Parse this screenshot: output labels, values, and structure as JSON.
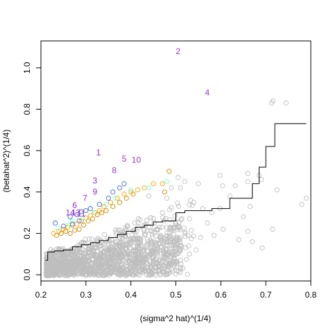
{
  "chart_data": {
    "type": "scatter",
    "xlabel": "(sigma^2 hat)^(1/4)",
    "ylabel": "(betahat^2)^(1/4)",
    "xlim": [
      0.2,
      0.8
    ],
    "ylim": [
      -0.03,
      1.13
    ],
    "x_ticks": [
      "0.2",
      "0.3",
      "0.4",
      "0.5",
      "0.6",
      "0.7",
      "0.8"
    ],
    "y_ticks": [
      "0.0",
      "0.2",
      "0.4",
      "0.6",
      "0.8",
      "1.0"
    ],
    "grid": false,
    "legend": "none",
    "series": [
      {
        "color": "#bebebe",
        "marker": "open-circle",
        "points": [
          [
            0.713,
            0.83
          ],
          [
            0.716,
            0.84
          ],
          [
            0.745,
            0.83
          ],
          [
            0.69,
            0.46
          ],
          [
            0.685,
            0.48
          ],
          [
            0.66,
            0.49
          ],
          [
            0.66,
            0.45
          ],
          [
            0.725,
            0.41
          ],
          [
            0.79,
            0.37
          ],
          [
            0.78,
            0.34
          ],
          [
            0.715,
            0.22
          ],
          [
            0.692,
            0.13
          ],
          [
            0.632,
            0.43
          ],
          [
            0.604,
            0.43
          ],
          [
            0.665,
            0.33
          ],
          [
            0.65,
            0.28
          ],
          [
            0.62,
            0.38
          ],
          [
            0.598,
            0.32
          ],
          [
            0.58,
            0.3
          ],
          [
            0.57,
            0.25
          ],
          [
            0.605,
            0.22
          ],
          [
            0.67,
            0.16
          ],
          [
            0.66,
            0.21
          ],
          [
            0.64,
            0.17
          ],
          [
            0.555,
            0.18
          ],
          [
            0.545,
            0.12
          ],
          [
            0.53,
            0.1
          ],
          [
            0.585,
            0.19
          ],
          [
            0.598,
            0.48
          ],
          [
            0.55,
            0.44
          ],
          [
            0.52,
            0.45
          ],
          [
            0.51,
            0.42
          ],
          [
            0.54,
            0.35
          ],
          [
            0.56,
            0.32
          ],
          [
            0.505,
            0.47
          ],
          [
            0.49,
            0.42
          ],
          [
            0.48,
            0.37
          ],
          [
            0.47,
            0.3
          ],
          [
            0.5,
            0.25
          ],
          [
            0.52,
            0.2
          ],
          [
            0.5,
            0.14
          ],
          [
            0.48,
            0.1
          ],
          [
            0.45,
            0.08
          ],
          [
            0.46,
            0.17
          ],
          [
            0.44,
            0.38
          ]
        ],
        "cloud": {
          "x_center": 0.3,
          "y_center": 0.12,
          "n": 1500
        }
      },
      {
        "color": "#cd8500",
        "marker": "open-circle",
        "points": [
          [
            0.235,
            0.19
          ],
          [
            0.245,
            0.2
          ],
          [
            0.255,
            0.21
          ],
          [
            0.265,
            0.2
          ],
          [
            0.275,
            0.215
          ],
          [
            0.285,
            0.22
          ],
          [
            0.295,
            0.24
          ],
          [
            0.305,
            0.26
          ],
          [
            0.315,
            0.27
          ],
          [
            0.325,
            0.29
          ],
          [
            0.335,
            0.3
          ],
          [
            0.345,
            0.31
          ],
          [
            0.36,
            0.33
          ],
          [
            0.375,
            0.35
          ],
          [
            0.39,
            0.37
          ],
          [
            0.405,
            0.39
          ],
          [
            0.485,
            0.5
          ],
          [
            0.475,
            0.4
          ]
        ]
      },
      {
        "color": "#ffa500",
        "marker": "open-circle",
        "points": [
          [
            0.228,
            0.2
          ],
          [
            0.24,
            0.21
          ],
          [
            0.25,
            0.22
          ],
          [
            0.26,
            0.23
          ],
          [
            0.27,
            0.24
          ],
          [
            0.28,
            0.245
          ],
          [
            0.29,
            0.26
          ],
          [
            0.3,
            0.275
          ],
          [
            0.31,
            0.285
          ],
          [
            0.32,
            0.3
          ],
          [
            0.33,
            0.31
          ],
          [
            0.34,
            0.33
          ],
          [
            0.355,
            0.35
          ],
          [
            0.37,
            0.37
          ],
          [
            0.385,
            0.39
          ],
          [
            0.4,
            0.4
          ],
          [
            0.415,
            0.41
          ],
          [
            0.43,
            0.42
          ],
          [
            0.45,
            0.44
          ],
          [
            0.47,
            0.44
          ]
        ]
      },
      {
        "color": "#7fffd4",
        "marker": "open-circle",
        "points": [
          [
            0.238,
            0.225
          ],
          [
            0.262,
            0.24
          ],
          [
            0.292,
            0.27
          ],
          [
            0.318,
            0.3
          ],
          [
            0.345,
            0.34
          ],
          [
            0.365,
            0.37
          ],
          [
            0.4,
            0.41
          ],
          [
            0.44,
            0.42
          ],
          [
            0.48,
            0.45
          ],
          [
            0.27,
            0.26
          ]
        ]
      },
      {
        "color": "#4169e1",
        "marker": "open-circle",
        "points": [
          [
            0.232,
            0.25
          ],
          [
            0.25,
            0.235
          ],
          [
            0.265,
            0.28
          ],
          [
            0.28,
            0.29
          ],
          [
            0.29,
            0.305
          ],
          [
            0.3,
            0.31
          ],
          [
            0.31,
            0.32
          ],
          [
            0.33,
            0.34
          ],
          [
            0.35,
            0.37
          ],
          [
            0.36,
            0.4
          ],
          [
            0.375,
            0.42
          ],
          [
            0.385,
            0.44
          ],
          [
            0.27,
            0.245
          ],
          [
            0.285,
            0.26
          ]
        ]
      }
    ],
    "step_line": {
      "color": "#000000",
      "x": [
        0.21,
        0.215,
        0.23,
        0.25,
        0.27,
        0.29,
        0.31,
        0.33,
        0.35,
        0.37,
        0.39,
        0.41,
        0.43,
        0.45,
        0.47,
        0.5,
        0.52,
        0.55,
        0.58,
        0.62,
        0.64,
        0.67,
        0.685,
        0.7,
        0.72,
        0.79
      ],
      "y": [
        0.07,
        0.11,
        0.115,
        0.12,
        0.135,
        0.145,
        0.155,
        0.165,
        0.18,
        0.195,
        0.21,
        0.23,
        0.24,
        0.255,
        0.26,
        0.3,
        0.31,
        0.31,
        0.32,
        0.37,
        0.37,
        0.44,
        0.52,
        0.62,
        0.73,
        0.73
      ]
    },
    "labels": [
      {
        "text": "2",
        "x": 0.505,
        "y": 1.08
      },
      {
        "text": "4",
        "x": 0.57,
        "y": 0.88
      },
      {
        "text": "1",
        "x": 0.328,
        "y": 0.59
      },
      {
        "text": "5",
        "x": 0.385,
        "y": 0.56
      },
      {
        "text": "10",
        "x": 0.412,
        "y": 0.555
      },
      {
        "text": "8",
        "x": 0.363,
        "y": 0.505
      },
      {
        "text": "3",
        "x": 0.32,
        "y": 0.455
      },
      {
        "text": "9",
        "x": 0.32,
        "y": 0.4
      },
      {
        "text": "7",
        "x": 0.298,
        "y": 0.37
      },
      {
        "text": "6",
        "x": 0.275,
        "y": 0.335
      },
      {
        "text": "14",
        "x": 0.265,
        "y": 0.3
      },
      {
        "text": "13",
        "x": 0.278,
        "y": 0.3
      },
      {
        "text": "11",
        "x": 0.29,
        "y": 0.295
      }
    ]
  }
}
